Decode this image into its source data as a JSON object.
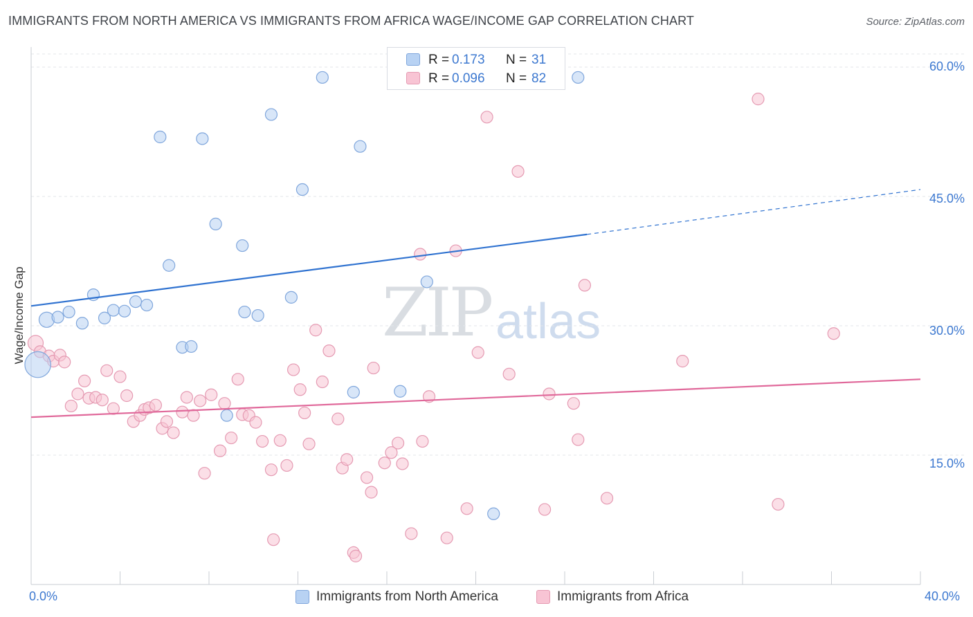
{
  "title": "IMMIGRANTS FROM NORTH AMERICA VS IMMIGRANTS FROM AFRICA WAGE/INCOME GAP CORRELATION CHART",
  "source": "Source: ZipAtlas.com",
  "watermark": {
    "zip": "ZIP",
    "atlas": "atlas"
  },
  "legend": {
    "rows": [
      {
        "r_label": "R =",
        "r_value": "0.173",
        "n_label": "N =",
        "n_value": "31",
        "color": "#b8d2f3",
        "border": "#7fa6dc"
      },
      {
        "r_label": "R =",
        "r_value": "0.096",
        "n_label": "N =",
        "n_value": "82",
        "color": "#f8c4d4",
        "border": "#e59ab2"
      }
    ]
  },
  "colors": {
    "north_america_fill": "#b8d2f3",
    "north_america_stroke": "#7fa6dc",
    "north_america_line": "#2f72d0",
    "africa_fill": "#f8c4d4",
    "africa_stroke": "#e59ab2",
    "africa_line": "#e0689a",
    "tick_label": "#3c78d0",
    "grid": "#e3e6ea"
  },
  "chart_data": {
    "type": "scatter",
    "title": "IMMIGRANTS FROM NORTH AMERICA VS IMMIGRANTS FROM AFRICA WAGE/INCOME GAP CORRELATION CHART",
    "xlabel": "",
    "ylabel": "Wage/Income Gap",
    "xlim": [
      0,
      40
    ],
    "ylim": [
      0,
      60
    ],
    "x_tick_labels": [
      "0.0%",
      "40.0%"
    ],
    "y_ticks": [
      15,
      30,
      45,
      60
    ],
    "y_tick_labels": [
      "15.0%",
      "30.0%",
      "45.0%",
      "60.0%"
    ],
    "grid": true,
    "legend_position": "top-center",
    "series": [
      {
        "name": "Immigrants from North America",
        "R": 0.173,
        "N": 31,
        "trend": {
          "x": [
            0,
            25
          ],
          "y": [
            32.3,
            40.6
          ],
          "dashed_to": [
            40,
            45.8
          ]
        },
        "points": [
          [
            0.3,
            25.5,
            2.2
          ],
          [
            0.7,
            30.7,
            1.3
          ],
          [
            1.2,
            31.0,
            1
          ],
          [
            1.7,
            31.6,
            1
          ],
          [
            2.3,
            30.3,
            1
          ],
          [
            2.8,
            33.6,
            1
          ],
          [
            3.3,
            30.9,
            1
          ],
          [
            3.7,
            31.8,
            1
          ],
          [
            4.2,
            31.7,
            1
          ],
          [
            4.7,
            32.8,
            1
          ],
          [
            5.2,
            32.4,
            1
          ],
          [
            5.8,
            51.9,
            1
          ],
          [
            6.2,
            37.0,
            1
          ],
          [
            6.8,
            27.5,
            1
          ],
          [
            7.2,
            27.6,
            1
          ],
          [
            7.7,
            51.7,
            1
          ],
          [
            8.3,
            41.8,
            1
          ],
          [
            8.8,
            19.6,
            1
          ],
          [
            9.5,
            39.3,
            1
          ],
          [
            9.6,
            31.6,
            1
          ],
          [
            10.2,
            31.2,
            1
          ],
          [
            10.8,
            54.5,
            1
          ],
          [
            11.7,
            33.3,
            1
          ],
          [
            12.2,
            45.8,
            1
          ],
          [
            13.1,
            58.8,
            1
          ],
          [
            14.5,
            22.3,
            1
          ],
          [
            14.8,
            50.8,
            1
          ],
          [
            16.6,
            22.4,
            1
          ],
          [
            17.8,
            35.1,
            1
          ],
          [
            20.8,
            8.2,
            1
          ],
          [
            24.6,
            58.8,
            1
          ]
        ]
      },
      {
        "name": "Immigrants from Africa",
        "R": 0.096,
        "N": 82,
        "trend": {
          "x": [
            0,
            40
          ],
          "y": [
            19.4,
            23.8
          ]
        },
        "points": [
          [
            0.2,
            28.0,
            1.3
          ],
          [
            0.4,
            27.0,
            1
          ],
          [
            0.8,
            26.5,
            1
          ],
          [
            1.0,
            25.9,
            1
          ],
          [
            1.3,
            26.6,
            1
          ],
          [
            1.5,
            25.8,
            1
          ],
          [
            1.8,
            20.7,
            1
          ],
          [
            2.1,
            22.1,
            1
          ],
          [
            2.4,
            23.6,
            1
          ],
          [
            2.6,
            21.6,
            1
          ],
          [
            2.9,
            21.7,
            1
          ],
          [
            3.2,
            21.4,
            1
          ],
          [
            3.4,
            24.8,
            1
          ],
          [
            3.7,
            20.4,
            1
          ],
          [
            4.0,
            24.1,
            1
          ],
          [
            4.3,
            21.9,
            1
          ],
          [
            4.6,
            18.9,
            1
          ],
          [
            4.9,
            19.6,
            1
          ],
          [
            5.1,
            20.3,
            1
          ],
          [
            5.3,
            20.5,
            1
          ],
          [
            5.6,
            20.8,
            1
          ],
          [
            5.9,
            18.1,
            1
          ],
          [
            6.1,
            18.9,
            1
          ],
          [
            6.4,
            17.6,
            1
          ],
          [
            6.8,
            20.0,
            1
          ],
          [
            7.0,
            21.7,
            1
          ],
          [
            7.3,
            19.6,
            1
          ],
          [
            7.6,
            21.3,
            1
          ],
          [
            7.8,
            12.9,
            1
          ],
          [
            8.1,
            22.0,
            1
          ],
          [
            8.5,
            15.5,
            1
          ],
          [
            8.7,
            21.0,
            1
          ],
          [
            9.0,
            17.0,
            1
          ],
          [
            9.3,
            23.8,
            1
          ],
          [
            9.5,
            19.7,
            1
          ],
          [
            9.8,
            19.6,
            1
          ],
          [
            10.1,
            18.8,
            1
          ],
          [
            10.4,
            16.6,
            1
          ],
          [
            10.8,
            13.3,
            1
          ],
          [
            10.9,
            5.2,
            1
          ],
          [
            11.2,
            16.7,
            1
          ],
          [
            11.5,
            13.8,
            1
          ],
          [
            11.8,
            24.9,
            1
          ],
          [
            12.1,
            22.6,
            1
          ],
          [
            12.3,
            19.9,
            1
          ],
          [
            12.5,
            16.3,
            1
          ],
          [
            12.8,
            29.5,
            1
          ],
          [
            13.1,
            23.5,
            1
          ],
          [
            13.4,
            27.1,
            1
          ],
          [
            13.8,
            19.2,
            1
          ],
          [
            14.0,
            13.5,
            1
          ],
          [
            14.2,
            14.5,
            1
          ],
          [
            14.5,
            3.7,
            1
          ],
          [
            14.6,
            3.3,
            1
          ],
          [
            15.1,
            12.4,
            1
          ],
          [
            15.3,
            10.7,
            1
          ],
          [
            15.4,
            25.1,
            1
          ],
          [
            15.9,
            14.1,
            1
          ],
          [
            16.2,
            15.3,
            1
          ],
          [
            16.5,
            16.4,
            1
          ],
          [
            16.7,
            14.0,
            1
          ],
          [
            17.1,
            5.9,
            1
          ],
          [
            17.5,
            38.3,
            1
          ],
          [
            17.6,
            16.6,
            1
          ],
          [
            17.9,
            21.8,
            1
          ],
          [
            18.7,
            5.4,
            1
          ],
          [
            19.1,
            38.7,
            1
          ],
          [
            19.6,
            8.8,
            1
          ],
          [
            20.1,
            26.9,
            1
          ],
          [
            20.5,
            54.2,
            1
          ],
          [
            21.5,
            24.4,
            1
          ],
          [
            21.9,
            47.9,
            1
          ],
          [
            23.1,
            8.7,
            1
          ],
          [
            23.3,
            22.1,
            1
          ],
          [
            24.4,
            21.0,
            1
          ],
          [
            24.6,
            16.8,
            1
          ],
          [
            24.9,
            34.7,
            1
          ],
          [
            25.9,
            10.0,
            1
          ],
          [
            29.3,
            25.9,
            1
          ],
          [
            32.7,
            56.3,
            1
          ],
          [
            33.6,
            9.3,
            1
          ],
          [
            36.1,
            29.1,
            1
          ]
        ]
      }
    ]
  },
  "bottom_legend": [
    {
      "label": "Immigrants from North America"
    },
    {
      "label": "Immigrants from Africa"
    }
  ]
}
